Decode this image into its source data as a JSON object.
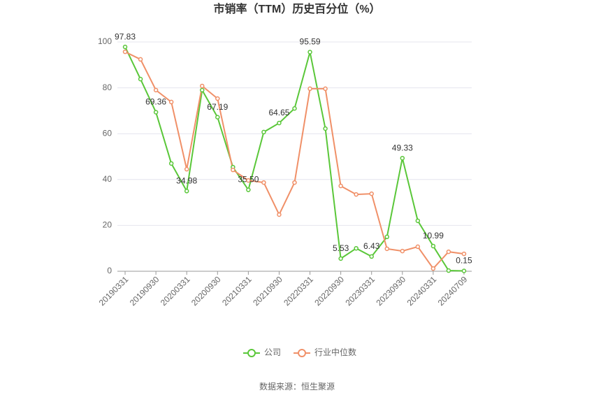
{
  "chart_data": {
    "type": "line",
    "title": "市销率（TTM）历史百分位（%）",
    "source": "数据来源：恒生聚源",
    "categories": [
      "20190331",
      null,
      "20190930",
      null,
      "20200331",
      null,
      "20200930",
      null,
      "20210331",
      null,
      "20210930",
      null,
      "20220331",
      null,
      "20220930",
      null,
      "20230331",
      null,
      "20230930",
      null,
      "20240331",
      null,
      "20240709"
    ],
    "series": [
      {
        "name": "公司",
        "color": "#5ac739",
        "values": [
          97.83,
          83.8,
          69.36,
          47,
          34.98,
          79,
          67.19,
          45.4,
          35.5,
          60.7,
          64.65,
          71,
          95.59,
          62.2,
          5.53,
          10,
          6.43,
          15,
          49.33,
          22,
          10.99,
          0.3,
          0.15
        ],
        "value_labels": [
          "97.83",
          null,
          "69.36",
          null,
          "34.98",
          null,
          "67.19",
          null,
          "35.50",
          null,
          "64.65",
          null,
          "95.59",
          null,
          "5.53",
          null,
          "6.43",
          null,
          "49.33",
          null,
          "10.99",
          null,
          "0.15"
        ]
      },
      {
        "name": "行业中位数",
        "color": "#f09068",
        "values": [
          95.7,
          92.4,
          79,
          73.8,
          44.5,
          80.8,
          75.3,
          44.2,
          39.6,
          38.7,
          24.7,
          38.7,
          79.6,
          79.6,
          37.2,
          33.5,
          33.8,
          9.8,
          8.8,
          10.7,
          1.2,
          8.5,
          7.6
        ]
      }
    ],
    "ylim": [
      0,
      100
    ],
    "yticks": [
      0,
      20,
      40,
      60,
      80,
      100
    ],
    "grid": true
  }
}
